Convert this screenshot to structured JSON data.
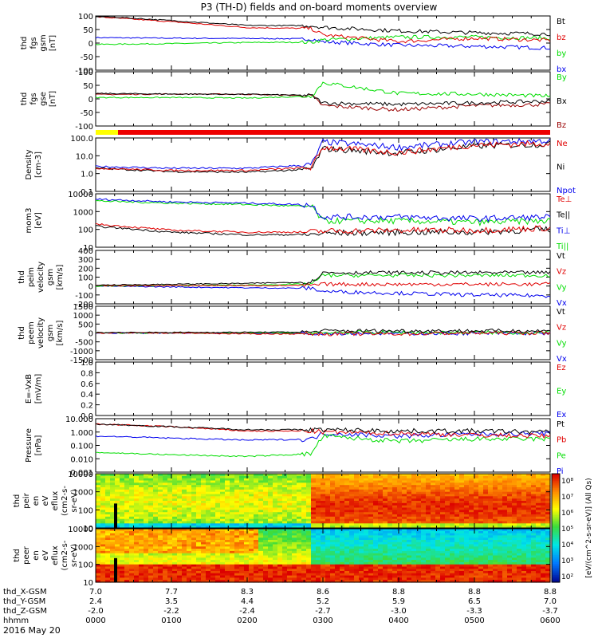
{
  "title": "P3 (TH-D) fields and on-board moments overview",
  "date_label": "2016 May 20",
  "colors": {
    "black": "#000000",
    "red": "#e00000",
    "green": "#00dd00",
    "blue": "#0000ee",
    "darkred": "#990000",
    "yellow": "#ffff00",
    "barred": "#ee0000"
  },
  "panels": [
    {
      "id": "fgs_gsm",
      "ylabel_lines": [
        "thd",
        "fgs",
        "gsm",
        "[nT]"
      ],
      "ticks": [
        "100",
        "50",
        "0",
        "-50",
        "-100"
      ],
      "legend": [
        {
          "text": "Bt",
          "color": "#000000"
        },
        {
          "text": "bz",
          "color": "#e00000"
        },
        {
          "text": "by",
          "color": "#00dd00"
        },
        {
          "text": "bx",
          "color": "#0000ee"
        }
      ]
    },
    {
      "id": "fgs_gse",
      "ylabel_lines": [
        "thd",
        "fgs",
        "gse",
        "[nT]"
      ],
      "ticks": [
        "100",
        "50",
        "0",
        "-50",
        "-100"
      ],
      "legend": [
        {
          "text": "By",
          "color": "#00dd00"
        },
        {
          "text": "Bx",
          "color": "#000000"
        },
        {
          "text": "Bz",
          "color": "#990000"
        }
      ]
    },
    {
      "id": "density",
      "ylabel_lines": [
        "Density",
        "[cm-3]"
      ],
      "ticks": [
        "100.0",
        "10.0",
        "1.0",
        "0.1"
      ],
      "legend": [
        {
          "text": "Ne",
          "color": "#e00000"
        },
        {
          "text": "Ni",
          "color": "#000000"
        },
        {
          "text": "Npot",
          "color": "#0000ee"
        }
      ]
    },
    {
      "id": "temp",
      "ylabel_lines": [
        "mom3",
        "[eV]"
      ],
      "ticks": [
        "10000",
        "1000",
        "100",
        "10"
      ],
      "legend": [
        {
          "text": "Te⊥",
          "color": "#e00000"
        },
        {
          "text": "Te||",
          "color": "#000000"
        },
        {
          "text": "Ti⊥",
          "color": "#0000ee"
        },
        {
          "text": "Ti||",
          "color": "#00dd00"
        }
      ]
    },
    {
      "id": "peim_vel",
      "ylabel_lines": [
        "thd",
        "peim",
        "velocity",
        "gsm",
        "[km/s]"
      ],
      "ticks": [
        "400",
        "300",
        "200",
        "100",
        "0",
        "-100",
        "-200"
      ],
      "legend": [
        {
          "text": "Vt",
          "color": "#000000"
        },
        {
          "text": "Vz",
          "color": "#e00000"
        },
        {
          "text": "Vy",
          "color": "#00dd00"
        },
        {
          "text": "Vx",
          "color": "#0000ee"
        }
      ]
    },
    {
      "id": "peem_vel",
      "ylabel_lines": [
        "thd",
        "peem",
        "velocity",
        "gsm",
        "[km/s]"
      ],
      "ticks": [
        "1500",
        "1000",
        "500",
        "0",
        "-500",
        "-1000",
        "-1500"
      ],
      "legend": [
        {
          "text": "Vt",
          "color": "#000000"
        },
        {
          "text": "Vz",
          "color": "#e00000"
        },
        {
          "text": "Vy",
          "color": "#00dd00"
        },
        {
          "text": "Vx",
          "color": "#0000ee"
        }
      ]
    },
    {
      "id": "efield",
      "ylabel_lines": [
        "E=-VxB",
        "[mV/m]"
      ],
      "ticks": [
        "1.0",
        "0.8",
        "0.6",
        "0.4",
        "0.2",
        "0.0"
      ],
      "legend": [
        {
          "text": "Ez",
          "color": "#e00000"
        },
        {
          "text": "Ey",
          "color": "#00dd00"
        },
        {
          "text": "Ex",
          "color": "#0000ee"
        }
      ]
    },
    {
      "id": "pressure",
      "ylabel_lines": [
        "Pressure",
        "[nPa]"
      ],
      "ticks": [
        "10.000",
        "1.000",
        "0.100",
        "0.010",
        "0.001"
      ],
      "legend": [
        {
          "text": "Pt",
          "color": "#000000"
        },
        {
          "text": "Pb",
          "color": "#e00000"
        },
        {
          "text": "Pe",
          "color": "#00dd00"
        },
        {
          "text": "Pi",
          "color": "#0000ee"
        }
      ]
    },
    {
      "id": "peir_spec",
      "ylabel_lines": [
        "thd",
        "peir",
        "en",
        "eV",
        "eflux",
        "(cm2-s-",
        "sr-eV)"
      ],
      "ticks": [
        "10000",
        "1000",
        "100",
        "10"
      ],
      "legend": []
    },
    {
      "id": "peer_spec",
      "ylabel_lines": [
        "thd",
        "peer",
        "en",
        "eV",
        "eflux",
        "(cm2-s-",
        "sr-eV)"
      ],
      "ticks": [
        "10000",
        "1000",
        "100",
        "10"
      ],
      "legend": []
    }
  ],
  "colorbar": {
    "ticks": [
      "10⁸",
      "10⁷",
      "10⁶",
      "10⁵",
      "10⁴",
      "10³",
      "10²"
    ],
    "label": "[eV/(cm^2-s-sr-eV)] (All Qs)"
  },
  "xaxis": {
    "rows": [
      {
        "label": "thd_X-GSM",
        "values": [
          "7.0",
          "7.7",
          "8.3",
          "8.6",
          "8.8",
          "8.8",
          "8.8"
        ]
      },
      {
        "label": "thd_Y-GSM",
        "values": [
          "2.4",
          "3.5",
          "4.4",
          "5.2",
          "5.9",
          "6.5",
          "7.0"
        ]
      },
      {
        "label": "thd_Z-GSM",
        "values": [
          "-2.0",
          "-2.2",
          "-2.4",
          "-2.7",
          "-3.0",
          "-3.3",
          "-3.7"
        ]
      },
      {
        "label": "hhmm",
        "values": [
          "0000",
          "0100",
          "0200",
          "0300",
          "0400",
          "0500",
          "0600"
        ]
      }
    ]
  },
  "chart_data": {
    "type": "line",
    "title": "P3 (TH-D) fields and on-board moments overview",
    "x": [
      "0000",
      "0100",
      "0200",
      "0300",
      "0400",
      "0500",
      "0600"
    ],
    "xlabel": "hhmm",
    "panels": [
      {
        "ylabel": "thd fgs gsm [nT]",
        "ylim": [
          -100,
          100
        ],
        "scale": "linear",
        "series": [
          {
            "name": "Bt",
            "values": [
              100,
              83,
              65,
              58,
              45,
              38,
              34
            ]
          },
          {
            "name": "bz",
            "values": [
              97,
              79,
              57,
              30,
              6,
              18,
              10
            ]
          },
          {
            "name": "by",
            "values": [
              -5,
              -2,
              2,
              12,
              22,
              22,
              18
            ]
          },
          {
            "name": "bx",
            "values": [
              20,
              18,
              17,
              5,
              -8,
              -12,
              -18
            ]
          }
        ]
      },
      {
        "ylabel": "thd fgs gse [nT]",
        "ylim": [
          -100,
          100
        ],
        "scale": "linear",
        "series": [
          {
            "name": "By",
            "values": [
              5,
              5,
              3,
              60,
              20,
              18,
              10
            ]
          },
          {
            "name": "Bx",
            "values": [
              20,
              18,
              17,
              -15,
              -20,
              -15,
              -8
            ]
          },
          {
            "name": "Bz",
            "values": [
              16,
              18,
              17,
              -25,
              -40,
              -25,
              -20
            ]
          }
        ]
      },
      {
        "ylabel": "Density [cm-3]",
        "ylim": [
          0.1,
          100
        ],
        "scale": "log",
        "series": [
          {
            "name": "Ne",
            "values": [
              2,
              1.5,
              1.5,
              30,
              15,
              40,
              50
            ]
          },
          {
            "name": "Ni",
            "values": [
              2,
              1.3,
              1.2,
              25,
              14,
              35,
              45
            ]
          },
          {
            "name": "Npot",
            "values": [
              2.5,
              2,
              2,
              60,
              30,
              60,
              70
            ]
          }
        ]
      },
      {
        "ylabel": "mom3 [eV]",
        "ylim": [
          10,
          10000
        ],
        "scale": "log",
        "series": [
          {
            "name": "Te⊥",
            "values": [
              200,
              90,
              70,
              80,
              90,
              90,
              120
            ]
          },
          {
            "name": "Te||",
            "values": [
              150,
              70,
              50,
              60,
              70,
              70,
              100
            ]
          },
          {
            "name": "Ti⊥",
            "values": [
              5000,
              3500,
              3000,
              500,
              500,
              400,
              500
            ]
          },
          {
            "name": "Ti||",
            "values": [
              4000,
              3000,
              2500,
              300,
              300,
              250,
              300
            ]
          }
        ]
      },
      {
        "ylabel": "thd peim velocity gsm [km/s]",
        "ylim": [
          -200,
          400
        ],
        "scale": "linear",
        "series": [
          {
            "name": "Vt",
            "values": [
              10,
              20,
              30,
              150,
              150,
              150,
              150
            ]
          },
          {
            "name": "Vz",
            "values": [
              5,
              5,
              5,
              20,
              20,
              20,
              20
            ]
          },
          {
            "name": "Vy",
            "values": [
              0,
              5,
              10,
              120,
              120,
              120,
              120
            ]
          },
          {
            "name": "Vx",
            "values": [
              0,
              -10,
              -20,
              -60,
              -80,
              -100,
              -110
            ]
          }
        ]
      },
      {
        "ylabel": "thd peem velocity gsm [km/s]",
        "ylim": [
          -1500,
          1500
        ],
        "scale": "linear",
        "series": [
          {
            "name": "Vt",
            "values": [
              20,
              30,
              40,
              120,
              120,
              120,
              120
            ]
          },
          {
            "name": "Vz",
            "values": [
              0,
              0,
              -50,
              -50,
              -50,
              0,
              0
            ]
          },
          {
            "name": "Vy",
            "values": [
              0,
              0,
              0,
              30,
              30,
              20,
              20
            ]
          },
          {
            "name": "Vx",
            "values": [
              0,
              0,
              -20,
              -20,
              -20,
              -20,
              -20
            ]
          }
        ]
      },
      {
        "ylabel": "E=-VxB [mV/m]",
        "ylim": [
          0,
          1
        ],
        "scale": "linear",
        "series": [
          {
            "name": "Ez",
            "values": []
          },
          {
            "name": "Ey",
            "values": []
          },
          {
            "name": "Ex",
            "values": []
          }
        ]
      },
      {
        "ylabel": "Pressure [nPa]",
        "ylim": [
          0.001,
          10
        ],
        "scale": "log",
        "series": [
          {
            "name": "Pt",
            "values": [
              4,
              2.5,
              1.5,
              1.5,
              1.2,
              1.2,
              1.0
            ]
          },
          {
            "name": "Pb",
            "values": [
              4,
              2.5,
              1.2,
              1.0,
              0.8,
              0.6,
              0.5
            ]
          },
          {
            "name": "Pe",
            "values": [
              0.03,
              0.02,
              0.015,
              0.5,
              0.2,
              0.3,
              0.3
            ]
          },
          {
            "name": "Pi",
            "values": [
              0.5,
              0.35,
              0.25,
              0.8,
              0.5,
              0.7,
              0.8
            ]
          }
        ]
      },
      {
        "ylabel": "thd peir en eV eflux (cm2-s-sr-eV)",
        "ylim": [
          5,
          20000
        ],
        "scale": "log",
        "type": "heatmap"
      },
      {
        "ylabel": "thd peer en eV eflux (cm2-s-sr-eV)",
        "ylim": [
          5,
          20000
        ],
        "scale": "log",
        "type": "heatmap"
      }
    ]
  }
}
